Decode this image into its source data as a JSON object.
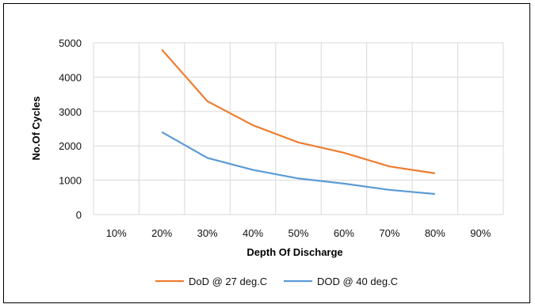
{
  "chart_data": {
    "type": "line",
    "categories": [
      "10%",
      "20%",
      "30%",
      "40%",
      "50%",
      "60%",
      "70%",
      "80%",
      "90%"
    ],
    "series": [
      {
        "name": "DoD @ 27 deg.C",
        "color": "#ED7D31",
        "values": [
          null,
          4800,
          3300,
          2600,
          2100,
          1800,
          1400,
          1200,
          null
        ]
      },
      {
        "name": "DOD @ 40 deg.C",
        "color": "#5B9BD5",
        "values": [
          null,
          2400,
          1650,
          1300,
          1050,
          900,
          720,
          600,
          null
        ]
      }
    ],
    "title": "",
    "xlabel": "Depth Of Discharge",
    "ylabel": "No.Of Cycles",
    "ylim": [
      0,
      5000
    ],
    "yticks": [
      "0",
      "1000",
      "2000",
      "3000",
      "4000",
      "5000"
    ],
    "grid": true,
    "legend": "bottom"
  }
}
